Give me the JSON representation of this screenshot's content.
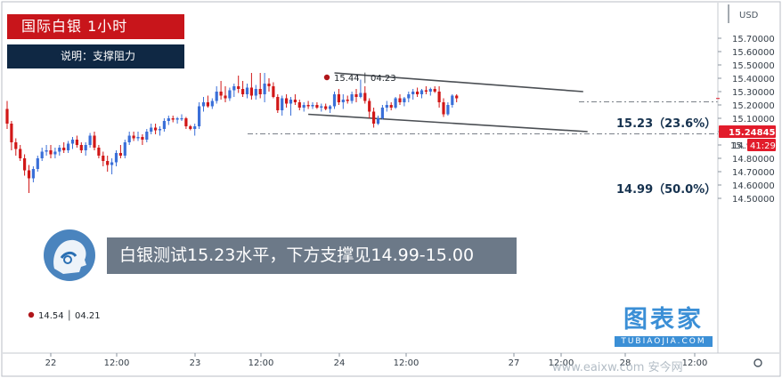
{
  "header": {
    "title": "国际白银  1小时",
    "note": "说明：支撑阻力"
  },
  "caption": "白银测试15.23水平，下方支撑见14.99-15.00",
  "brand": {
    "name": "图表家",
    "site": "TUBIAOJIA.COM",
    "footer": "www.eaixw.com 安今网"
  },
  "colors": {
    "up": "#3a6fd8",
    "down": "#d11717",
    "price_badge": "#e21c2b",
    "title_bg": "#c8151b",
    "note_bg": "#0f2844",
    "level_text": "#16324f"
  },
  "chart_data": {
    "type": "candlestick",
    "title": "国际白银  1小时",
    "currency_label": "USD",
    "y_ticks": [
      "15.70000",
      "15.60000",
      "15.50000",
      "15.40000",
      "15.30000",
      "15.20000",
      "15.10000",
      "15.00000",
      "14.90000",
      "14.80000",
      "14.70000",
      "14.60000",
      "14.50000"
    ],
    "ylim": [
      14.46,
      15.72
    ],
    "x_tick_labels": [
      "22",
      "12:00",
      "23",
      "12:00",
      "24",
      "12:00",
      "27",
      "12:00",
      "28",
      "12:00"
    ],
    "levels": [
      {
        "value": 15.23,
        "label": "15.23（23.6%）"
      },
      {
        "value": 14.99,
        "label": "14.99（50.0%）"
      }
    ],
    "current_price": {
      "value": 15.24845,
      "label": "15.24845",
      "countdown": "41:29",
      "partial_tick": "15."
    },
    "markers": [
      {
        "value": 15.44,
        "label": "15.44 │ 04.23"
      },
      {
        "value": 14.54,
        "label": "14.54 │ 04.21"
      }
    ],
    "channel": {
      "upper": [
        {
          "bar": 75,
          "value": 15.44
        },
        {
          "bar": 132,
          "value": 15.3
        }
      ],
      "lower": [
        {
          "bar": 69,
          "value": 15.13
        },
        {
          "bar": 133,
          "value": 15.0
        }
      ]
    },
    "candles": [
      {
        "o": 15.17,
        "h": 15.23,
        "l": 15.02,
        "c": 15.06
      },
      {
        "o": 15.06,
        "h": 15.08,
        "l": 14.86,
        "c": 14.92
      },
      {
        "o": 14.92,
        "h": 14.95,
        "l": 14.82,
        "c": 14.87
      },
      {
        "o": 14.87,
        "h": 14.9,
        "l": 14.78,
        "c": 14.8
      },
      {
        "o": 14.8,
        "h": 14.83,
        "l": 14.67,
        "c": 14.71
      },
      {
        "o": 14.71,
        "h": 14.75,
        "l": 14.54,
        "c": 14.65
      },
      {
        "o": 14.65,
        "h": 14.74,
        "l": 14.62,
        "c": 14.72
      },
      {
        "o": 14.72,
        "h": 14.82,
        "l": 14.7,
        "c": 14.8
      },
      {
        "o": 14.8,
        "h": 14.88,
        "l": 14.78,
        "c": 14.85
      },
      {
        "o": 14.85,
        "h": 14.9,
        "l": 14.82,
        "c": 14.86
      },
      {
        "o": 14.86,
        "h": 14.9,
        "l": 14.8,
        "c": 14.83
      },
      {
        "o": 14.83,
        "h": 14.88,
        "l": 14.8,
        "c": 14.85
      },
      {
        "o": 14.85,
        "h": 14.9,
        "l": 14.82,
        "c": 14.88
      },
      {
        "o": 14.88,
        "h": 14.92,
        "l": 14.84,
        "c": 14.86
      },
      {
        "o": 14.86,
        "h": 14.93,
        "l": 14.84,
        "c": 14.91
      },
      {
        "o": 14.91,
        "h": 14.96,
        "l": 14.87,
        "c": 14.94
      },
      {
        "o": 14.94,
        "h": 14.97,
        "l": 14.88,
        "c": 14.9
      },
      {
        "o": 14.9,
        "h": 14.92,
        "l": 14.84,
        "c": 14.86
      },
      {
        "o": 14.86,
        "h": 14.92,
        "l": 14.82,
        "c": 14.9
      },
      {
        "o": 14.9,
        "h": 14.99,
        "l": 14.88,
        "c": 14.97
      },
      {
        "o": 14.97,
        "h": 15.0,
        "l": 14.86,
        "c": 14.88
      },
      {
        "o": 14.88,
        "h": 14.9,
        "l": 14.8,
        "c": 14.82
      },
      {
        "o": 14.82,
        "h": 14.85,
        "l": 14.74,
        "c": 14.78
      },
      {
        "o": 14.78,
        "h": 14.82,
        "l": 14.7,
        "c": 14.75
      },
      {
        "o": 14.75,
        "h": 14.8,
        "l": 14.68,
        "c": 14.77
      },
      {
        "o": 14.77,
        "h": 14.86,
        "l": 14.74,
        "c": 14.84
      },
      {
        "o": 14.84,
        "h": 14.9,
        "l": 14.8,
        "c": 14.82
      },
      {
        "o": 14.82,
        "h": 14.94,
        "l": 14.8,
        "c": 14.92
      },
      {
        "o": 14.92,
        "h": 15.0,
        "l": 14.9,
        "c": 14.97
      },
      {
        "o": 14.97,
        "h": 15.0,
        "l": 14.93,
        "c": 14.95
      },
      {
        "o": 14.95,
        "h": 15.0,
        "l": 14.93,
        "c": 14.96
      },
      {
        "o": 14.96,
        "h": 14.98,
        "l": 14.9,
        "c": 14.94
      },
      {
        "o": 14.94,
        "h": 15.02,
        "l": 14.92,
        "c": 15.0
      },
      {
        "o": 15.0,
        "h": 15.06,
        "l": 14.98,
        "c": 15.03
      },
      {
        "o": 15.03,
        "h": 15.06,
        "l": 14.98,
        "c": 15.01
      },
      {
        "o": 15.01,
        "h": 15.04,
        "l": 14.97,
        "c": 15.02
      },
      {
        "o": 15.02,
        "h": 15.1,
        "l": 15.0,
        "c": 15.08
      },
      {
        "o": 15.08,
        "h": 15.12,
        "l": 15.05,
        "c": 15.1
      },
      {
        "o": 15.1,
        "h": 15.12,
        "l": 15.07,
        "c": 15.09
      },
      {
        "o": 15.09,
        "h": 15.11,
        "l": 15.06,
        "c": 15.1
      },
      {
        "o": 15.1,
        "h": 15.13,
        "l": 15.08,
        "c": 15.1
      },
      {
        "o": 15.1,
        "h": 15.11,
        "l": 15.02,
        "c": 15.04
      },
      {
        "o": 15.04,
        "h": 15.05,
        "l": 15.01,
        "c": 15.02
      },
      {
        "o": 15.02,
        "h": 15.06,
        "l": 14.97,
        "c": 15.04
      },
      {
        "o": 15.04,
        "h": 15.22,
        "l": 15.02,
        "c": 15.19
      },
      {
        "o": 15.19,
        "h": 15.26,
        "l": 15.15,
        "c": 15.22
      },
      {
        "o": 15.22,
        "h": 15.27,
        "l": 15.18,
        "c": 15.19
      },
      {
        "o": 15.19,
        "h": 15.25,
        "l": 15.17,
        "c": 15.23
      },
      {
        "o": 15.23,
        "h": 15.34,
        "l": 15.21,
        "c": 15.3
      },
      {
        "o": 15.3,
        "h": 15.38,
        "l": 15.24,
        "c": 15.27
      },
      {
        "o": 15.27,
        "h": 15.34,
        "l": 15.22,
        "c": 15.25
      },
      {
        "o": 15.25,
        "h": 15.33,
        "l": 15.23,
        "c": 15.31
      },
      {
        "o": 15.31,
        "h": 15.36,
        "l": 15.26,
        "c": 15.34
      },
      {
        "o": 15.34,
        "h": 15.42,
        "l": 15.29,
        "c": 15.32
      },
      {
        "o": 15.32,
        "h": 15.38,
        "l": 15.26,
        "c": 15.28
      },
      {
        "o": 15.28,
        "h": 15.36,
        "l": 15.25,
        "c": 15.33
      },
      {
        "o": 15.33,
        "h": 15.44,
        "l": 15.24,
        "c": 15.27
      },
      {
        "o": 15.27,
        "h": 15.35,
        "l": 15.24,
        "c": 15.32
      },
      {
        "o": 15.32,
        "h": 15.44,
        "l": 15.25,
        "c": 15.28
      },
      {
        "o": 15.28,
        "h": 15.44,
        "l": 15.22,
        "c": 15.36
      },
      {
        "o": 15.36,
        "h": 15.4,
        "l": 15.3,
        "c": 15.34
      },
      {
        "o": 15.34,
        "h": 15.37,
        "l": 15.25,
        "c": 15.26
      },
      {
        "o": 15.26,
        "h": 15.28,
        "l": 15.14,
        "c": 15.16
      },
      {
        "o": 15.16,
        "h": 15.27,
        "l": 15.12,
        "c": 15.25
      },
      {
        "o": 15.25,
        "h": 15.28,
        "l": 15.18,
        "c": 15.21
      },
      {
        "o": 15.21,
        "h": 15.26,
        "l": 15.12,
        "c": 15.24
      },
      {
        "o": 15.24,
        "h": 15.28,
        "l": 15.2,
        "c": 15.22
      },
      {
        "o": 15.22,
        "h": 15.24,
        "l": 15.16,
        "c": 15.18
      },
      {
        "o": 15.18,
        "h": 15.22,
        "l": 15.15,
        "c": 15.2
      },
      {
        "o": 15.2,
        "h": 15.23,
        "l": 15.17,
        "c": 15.19
      },
      {
        "o": 15.19,
        "h": 15.22,
        "l": 15.17,
        "c": 15.2
      },
      {
        "o": 15.2,
        "h": 15.22,
        "l": 15.17,
        "c": 15.18
      },
      {
        "o": 15.18,
        "h": 15.21,
        "l": 15.15,
        "c": 15.19
      },
      {
        "o": 15.19,
        "h": 15.21,
        "l": 15.16,
        "c": 15.17
      },
      {
        "o": 15.17,
        "h": 15.2,
        "l": 15.14,
        "c": 15.19
      },
      {
        "o": 15.19,
        "h": 15.3,
        "l": 15.17,
        "c": 15.28
      },
      {
        "o": 15.28,
        "h": 15.32,
        "l": 15.2,
        "c": 15.22
      },
      {
        "o": 15.22,
        "h": 15.28,
        "l": 15.17,
        "c": 15.24
      },
      {
        "o": 15.24,
        "h": 15.27,
        "l": 15.21,
        "c": 15.23
      },
      {
        "o": 15.23,
        "h": 15.3,
        "l": 15.21,
        "c": 15.28
      },
      {
        "o": 15.28,
        "h": 15.32,
        "l": 15.22,
        "c": 15.26
      },
      {
        "o": 15.26,
        "h": 15.39,
        "l": 15.25,
        "c": 15.29
      },
      {
        "o": 15.29,
        "h": 15.34,
        "l": 15.21,
        "c": 15.23
      },
      {
        "o": 15.23,
        "h": 15.25,
        "l": 15.1,
        "c": 15.15
      },
      {
        "o": 15.15,
        "h": 15.18,
        "l": 15.03,
        "c": 15.06
      },
      {
        "o": 15.06,
        "h": 15.12,
        "l": 15.05,
        "c": 15.1
      },
      {
        "o": 15.1,
        "h": 15.2,
        "l": 15.09,
        "c": 15.18
      },
      {
        "o": 15.18,
        "h": 15.23,
        "l": 15.15,
        "c": 15.2
      },
      {
        "o": 15.2,
        "h": 15.22,
        "l": 15.16,
        "c": 15.18
      },
      {
        "o": 15.18,
        "h": 15.26,
        "l": 15.17,
        "c": 15.25
      },
      {
        "o": 15.25,
        "h": 15.28,
        "l": 15.2,
        "c": 15.22
      },
      {
        "o": 15.22,
        "h": 15.26,
        "l": 15.19,
        "c": 15.25
      },
      {
        "o": 15.25,
        "h": 15.3,
        "l": 15.22,
        "c": 15.28
      },
      {
        "o": 15.28,
        "h": 15.32,
        "l": 15.24,
        "c": 15.3
      },
      {
        "o": 15.3,
        "h": 15.33,
        "l": 15.26,
        "c": 15.28
      },
      {
        "o": 15.28,
        "h": 15.32,
        "l": 15.25,
        "c": 15.31
      },
      {
        "o": 15.31,
        "h": 15.34,
        "l": 15.28,
        "c": 15.3
      },
      {
        "o": 15.3,
        "h": 15.33,
        "l": 15.27,
        "c": 15.32
      },
      {
        "o": 15.32,
        "h": 15.34,
        "l": 15.29,
        "c": 15.3
      },
      {
        "o": 15.3,
        "h": 15.34,
        "l": 15.18,
        "c": 15.22
      },
      {
        "o": 15.22,
        "h": 15.25,
        "l": 15.11,
        "c": 15.13
      },
      {
        "o": 15.13,
        "h": 15.22,
        "l": 15.12,
        "c": 15.2
      },
      {
        "o": 15.2,
        "h": 15.28,
        "l": 15.18,
        "c": 15.27
      },
      {
        "o": 15.27,
        "h": 15.28,
        "l": 15.22,
        "c": 15.25
      }
    ]
  }
}
